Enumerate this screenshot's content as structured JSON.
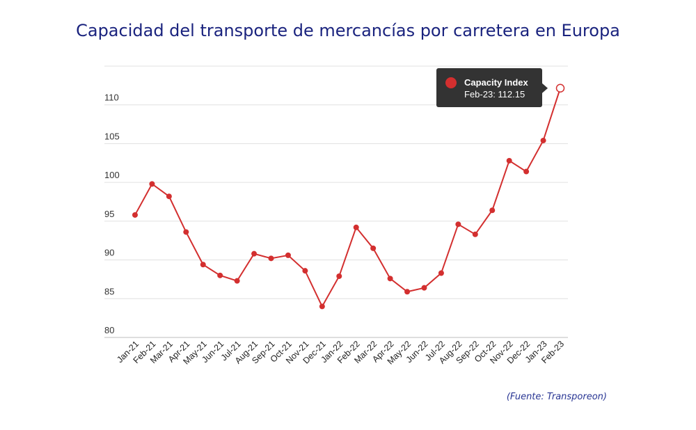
{
  "chart_data": {
    "type": "line",
    "title": "Capacidad del transporte de mercancías por carretera en Europa",
    "categories": [
      "Jan-21",
      "Feb-21",
      "Mar-21",
      "Apr-21",
      "May-21",
      "Jun-21",
      "Jul-21",
      "Aug-21",
      "Sep-21",
      "Oct-21",
      "Nov-21",
      "Dec-21",
      "Jan-22",
      "Feb-22",
      "Mar-22",
      "Apr-22",
      "May-22",
      "Jun-22",
      "Jul-22",
      "Aug-22",
      "Sep-22",
      "Oct-22",
      "Nov-22",
      "Dec-22",
      "Jan-23",
      "Feb-23"
    ],
    "series": [
      {
        "name": "Capacity Index",
        "color": "#d32f2f",
        "values": [
          95.8,
          99.8,
          98.2,
          93.6,
          89.4,
          88.0,
          87.3,
          90.8,
          90.2,
          90.6,
          88.6,
          84.0,
          87.9,
          94.2,
          91.5,
          87.6,
          85.9,
          86.4,
          88.3,
          94.6,
          93.3,
          96.4,
          102.8,
          101.4,
          105.4,
          112.15
        ]
      }
    ],
    "ylim": [
      80,
      115
    ],
    "yticks": [
      80,
      85,
      90,
      95,
      100,
      105,
      110
    ],
    "xlabel": "",
    "ylabel": "",
    "grid": true
  },
  "tooltip": {
    "series_name": "Capacity Index",
    "label": "Feb-23: 112.15",
    "index": 25
  },
  "source": "(Fuente: Transporeon)"
}
